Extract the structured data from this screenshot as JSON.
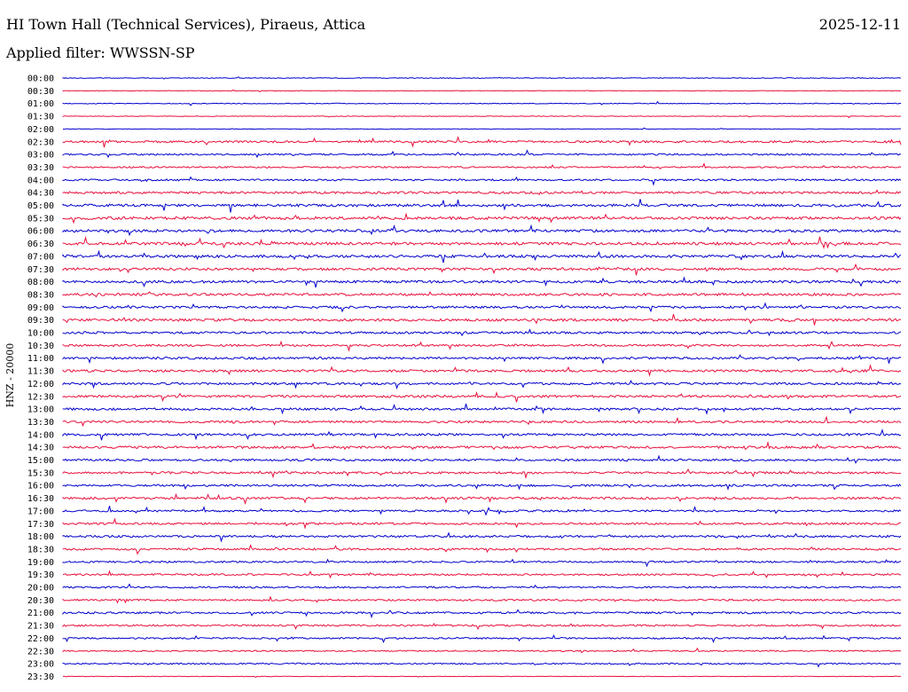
{
  "header": {
    "station": "HI Town Hall (Technical Services), Piraeus, Attica",
    "date": "2025-12-11",
    "filter": "Applied filter: WWSSN-SP"
  },
  "chart_data": {
    "type": "line",
    "title": "HI Town Hall (Technical Services), Piraeus, Attica",
    "ylabel": "HNZ - 20000",
    "row_labels": [
      "00:00",
      "00:30",
      "01:00",
      "01:30",
      "02:00",
      "02:30",
      "03:00",
      "03:30",
      "04:00",
      "04:30",
      "05:00",
      "05:30",
      "06:00",
      "06:30",
      "07:00",
      "07:30",
      "08:00",
      "08:30",
      "09:00",
      "09:30",
      "10:00",
      "10:30",
      "11:00",
      "11:30",
      "12:00",
      "12:30",
      "13:00",
      "13:30",
      "14:00",
      "14:30",
      "15:00",
      "15:30",
      "16:00",
      "16:30",
      "17:00",
      "17:30",
      "18:00",
      "18:30",
      "19:00",
      "19:30",
      "20:00",
      "20:30",
      "21:00",
      "21:30",
      "22:00",
      "22:30",
      "23:00",
      "23:30"
    ],
    "series_colors": [
      "#0000cc",
      "#e8103c"
    ],
    "row_activity": [
      0.25,
      0.2,
      0.25,
      0.2,
      0.2,
      0.7,
      0.55,
      0.55,
      0.6,
      0.75,
      0.9,
      0.95,
      0.9,
      0.95,
      0.9,
      0.85,
      0.85,
      0.85,
      0.8,
      0.85,
      0.75,
      0.7,
      0.75,
      0.8,
      0.75,
      0.8,
      0.75,
      0.75,
      0.75,
      0.8,
      0.7,
      0.75,
      0.7,
      0.75,
      0.65,
      0.7,
      0.7,
      0.7,
      0.6,
      0.6,
      0.6,
      0.6,
      0.65,
      0.6,
      0.55,
      0.45,
      0.5,
      0.15
    ],
    "grid": false
  }
}
